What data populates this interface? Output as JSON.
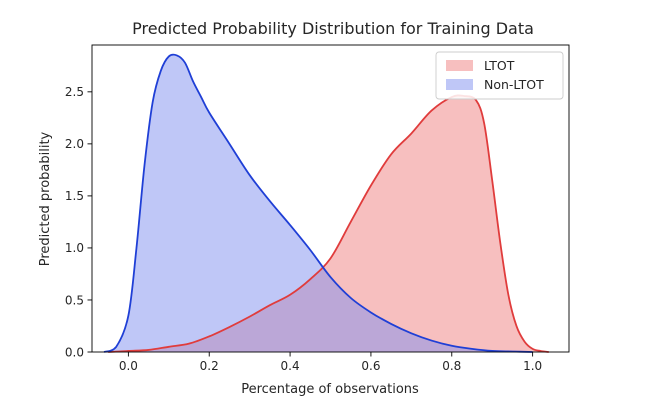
{
  "chart_data": {
    "type": "area",
    "title": "Predicted Probability Distribution for Training Data",
    "xlabel": "Percentage of observations",
    "ylabel": "Predicted probability",
    "xlim": [
      -0.09,
      1.09
    ],
    "ylim": [
      0,
      2.95
    ],
    "xticks": [
      0.0,
      0.2,
      0.4,
      0.6,
      0.8,
      1.0
    ],
    "xtick_labels": [
      "0.0",
      "0.2",
      "0.4",
      "0.6",
      "0.8",
      "1.0"
    ],
    "yticks": [
      0.0,
      0.5,
      1.0,
      1.5,
      2.0,
      2.5
    ],
    "ytick_labels": [
      "0.0",
      "0.5",
      "1.0",
      "1.5",
      "2.0",
      "2.5"
    ],
    "grid": false,
    "legend": {
      "position": "top-right"
    },
    "series": [
      {
        "name": "LTOT",
        "line_color": "#e03c3c",
        "fill_color": "#f08080",
        "x": [
          -0.05,
          0.0,
          0.05,
          0.1,
          0.15,
          0.2,
          0.25,
          0.3,
          0.35,
          0.4,
          0.45,
          0.5,
          0.55,
          0.6,
          0.65,
          0.7,
          0.75,
          0.8,
          0.83,
          0.86,
          0.88,
          0.9,
          0.92,
          0.94,
          0.96,
          0.98,
          1.0,
          1.02,
          1.04
        ],
        "y": [
          0.0,
          0.01,
          0.02,
          0.05,
          0.08,
          0.15,
          0.24,
          0.34,
          0.45,
          0.55,
          0.7,
          0.9,
          1.25,
          1.6,
          1.9,
          2.1,
          2.32,
          2.45,
          2.46,
          2.42,
          2.2,
          1.65,
          1.05,
          0.55,
          0.25,
          0.1,
          0.03,
          0.01,
          0.0
        ]
      },
      {
        "name": "Non-LTOT",
        "line_color": "#1f3fd6",
        "fill_color": "#8090f0",
        "x": [
          -0.06,
          -0.03,
          0.0,
          0.02,
          0.04,
          0.06,
          0.08,
          0.1,
          0.12,
          0.14,
          0.16,
          0.18,
          0.2,
          0.25,
          0.3,
          0.35,
          0.4,
          0.45,
          0.5,
          0.55,
          0.6,
          0.65,
          0.7,
          0.75,
          0.8,
          0.85,
          0.9,
          0.95,
          1.0
        ],
        "y": [
          0.0,
          0.05,
          0.35,
          1.0,
          1.8,
          2.4,
          2.7,
          2.84,
          2.85,
          2.78,
          2.6,
          2.45,
          2.3,
          2.0,
          1.7,
          1.45,
          1.22,
          0.98,
          0.72,
          0.52,
          0.38,
          0.27,
          0.18,
          0.11,
          0.06,
          0.03,
          0.01,
          0.005,
          0.0
        ]
      }
    ]
  }
}
